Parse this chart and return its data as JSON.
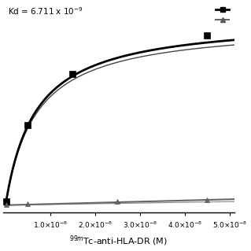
{
  "kd": 6.711e-09,
  "bmax_total": 1.0,
  "x_max": 5.1e-08,
  "x_ticks": [
    1e-08,
    2e-08,
    3e-08,
    4e-08,
    5e-08
  ],
  "total_data_x": [
    2e-10,
    5e-09,
    1.5e-08,
    4.5e-08
  ],
  "total_data_y": [
    0.02,
    0.43,
    0.7,
    0.91
  ],
  "nonspecific_data_x": [
    2e-10,
    5e-09,
    2.5e-08,
    4.5e-08
  ],
  "nonspecific_data_y": [
    0.002,
    0.008,
    0.018,
    0.028
  ],
  "curve_color_total": "#000000",
  "curve_color_nonspecific": "#666666",
  "marker_color_total": "#000000",
  "marker_color_nonspecific": "#666666",
  "xlabel_super": "99m",
  "xlabel_main": "Tc-anti-HLA-DR (M)",
  "kd_text": "Kd = 6.711 x 10",
  "kd_exp": "-9"
}
